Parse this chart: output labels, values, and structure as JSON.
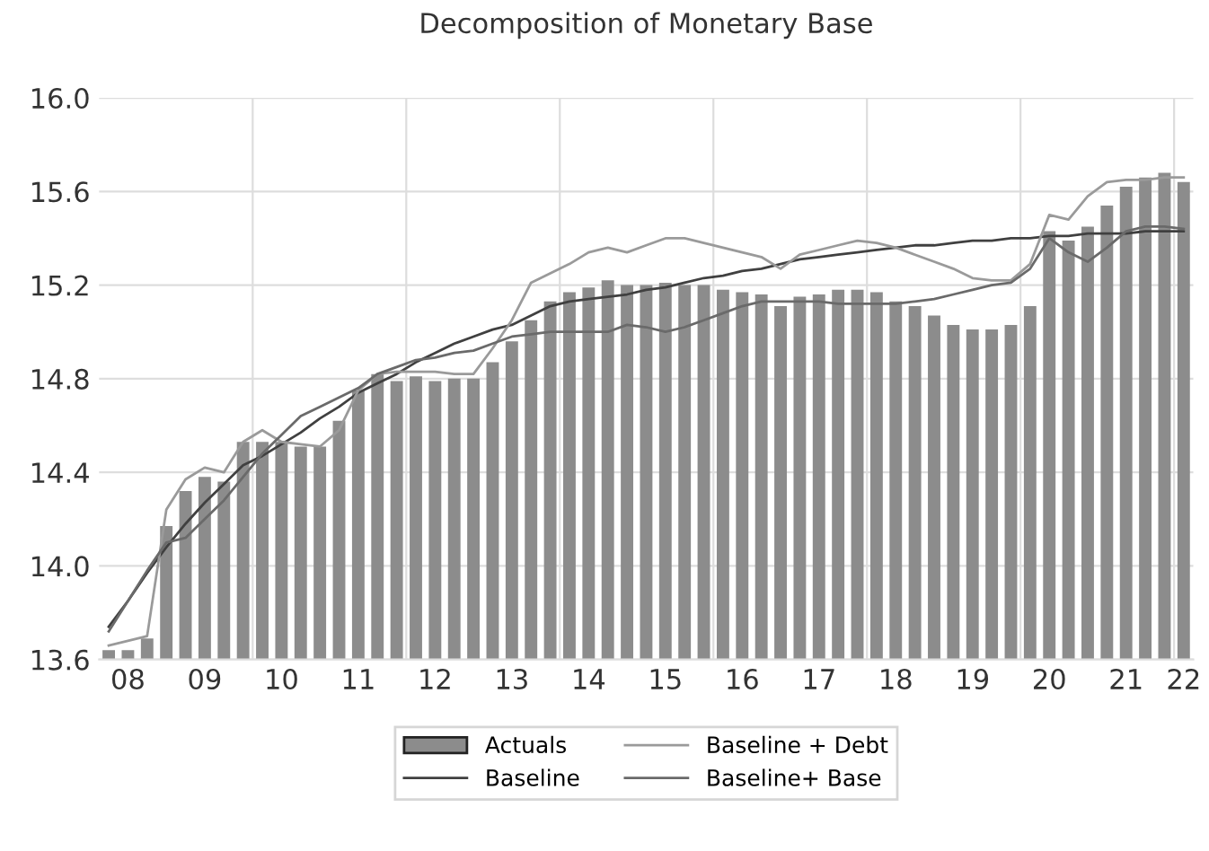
{
  "chart_data": {
    "type": "bar",
    "title": "Decomposition of Monetary Base",
    "categories": [
      null,
      "08",
      null,
      null,
      null,
      "09",
      null,
      null,
      null,
      "10",
      null,
      null,
      null,
      "11",
      null,
      null,
      null,
      "12",
      null,
      null,
      null,
      "13",
      null,
      null,
      null,
      "14",
      null,
      null,
      null,
      "15",
      null,
      null,
      null,
      "16",
      null,
      null,
      null,
      "17",
      null,
      null,
      null,
      "18",
      null,
      null,
      null,
      "19",
      null,
      null,
      null,
      "20",
      null,
      null,
      null,
      "21",
      null,
      null,
      "22"
    ],
    "series": [
      {
        "name": "Actuals",
        "color": "#8c8c8c",
        "values": [
          13.64,
          13.64,
          13.69,
          14.17,
          14.32,
          14.38,
          14.36,
          14.53,
          14.53,
          14.53,
          14.51,
          14.51,
          14.62,
          14.75,
          14.82,
          14.79,
          14.81,
          14.79,
          14.8,
          14.8,
          14.87,
          14.96,
          15.05,
          15.13,
          15.17,
          15.19,
          15.22,
          15.2,
          15.2,
          15.21,
          15.2,
          15.2,
          15.18,
          15.17,
          15.16,
          15.11,
          15.15,
          15.16,
          15.18,
          15.18,
          15.17,
          15.13,
          15.11,
          15.07,
          15.03,
          15.01,
          15.01,
          15.03,
          15.11,
          15.43,
          15.39,
          15.45,
          15.54,
          15.62,
          15.66,
          15.68,
          15.64
        ]
      },
      {
        "name": "Baseline",
        "type": "line",
        "color": "#404040",
        "values": [
          13.74,
          13.85,
          13.97,
          14.08,
          14.18,
          14.27,
          14.35,
          14.43,
          14.47,
          14.52,
          14.57,
          14.63,
          14.68,
          14.74,
          14.78,
          14.82,
          14.87,
          14.91,
          14.95,
          14.98,
          15.01,
          15.03,
          15.07,
          15.11,
          15.13,
          15.14,
          15.15,
          15.16,
          15.18,
          15.19,
          15.21,
          15.23,
          15.24,
          15.26,
          15.27,
          15.29,
          15.31,
          15.32,
          15.33,
          15.34,
          15.35,
          15.36,
          15.37,
          15.37,
          15.38,
          15.39,
          15.39,
          15.4,
          15.4,
          15.41,
          15.41,
          15.42,
          15.42,
          15.42,
          15.43,
          15.43,
          15.43
        ]
      },
      {
        "name": "Baseline + Debt",
        "type": "line",
        "color": "#9a9a9a",
        "values": [
          13.66,
          13.68,
          13.7,
          14.24,
          14.37,
          14.42,
          14.4,
          14.53,
          14.58,
          14.53,
          14.52,
          14.51,
          14.58,
          14.75,
          14.82,
          14.83,
          14.83,
          14.83,
          14.82,
          14.82,
          14.93,
          15.05,
          15.21,
          15.25,
          15.29,
          15.34,
          15.36,
          15.34,
          15.37,
          15.4,
          15.4,
          15.38,
          15.36,
          15.34,
          15.32,
          15.27,
          15.33,
          15.35,
          15.37,
          15.39,
          15.38,
          15.36,
          15.33,
          15.3,
          15.27,
          15.23,
          15.22,
          15.22,
          15.29,
          15.5,
          15.48,
          15.58,
          15.64,
          15.65,
          15.65,
          15.66,
          15.66
        ]
      },
      {
        "name": "Baseline+ Base",
        "type": "line",
        "color": "#6a6a6a",
        "values": [
          13.72,
          13.85,
          13.98,
          14.1,
          14.12,
          14.2,
          14.28,
          14.38,
          14.48,
          14.56,
          14.64,
          14.68,
          14.72,
          14.76,
          14.82,
          14.85,
          14.88,
          14.89,
          14.91,
          14.92,
          14.95,
          14.98,
          14.99,
          15.0,
          15.0,
          15.0,
          15.0,
          15.03,
          15.02,
          15.0,
          15.02,
          15.05,
          15.08,
          15.11,
          15.13,
          15.13,
          15.13,
          15.13,
          15.12,
          15.12,
          15.12,
          15.12,
          15.13,
          15.14,
          15.16,
          15.18,
          15.2,
          15.21,
          15.27,
          15.4,
          15.34,
          15.3,
          15.36,
          15.43,
          15.45,
          15.45,
          15.44
        ]
      }
    ],
    "ylim": [
      13.6,
      16.0
    ],
    "yticks": [
      {
        "value": 13.6,
        "label": "13.6"
      },
      {
        "value": 14.0,
        "label": "14.0"
      },
      {
        "value": 14.4,
        "label": "14.4"
      },
      {
        "value": 14.8,
        "label": "14.8"
      },
      {
        "value": 15.2,
        "label": "15.2"
      },
      {
        "value": 15.6,
        "label": "15.6"
      },
      {
        "value": 16.0,
        "label": "16.0"
      }
    ],
    "grid": true,
    "legend": "bottom",
    "line_style": "solid"
  }
}
